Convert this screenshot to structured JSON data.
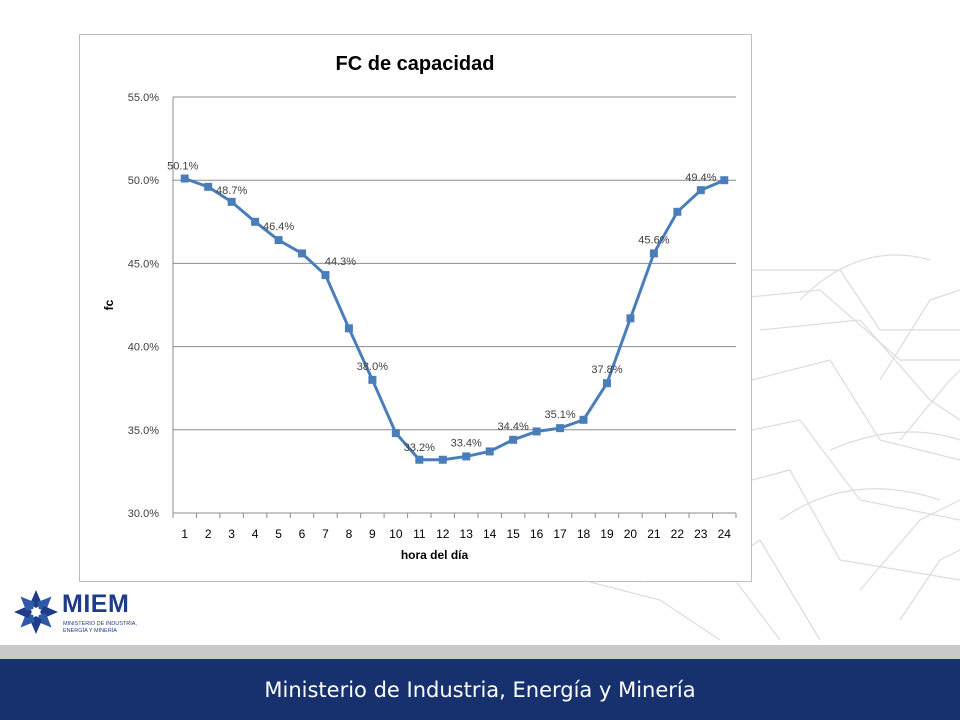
{
  "brand": {
    "logo_name": "MIEM",
    "logo_subtitle_line1": "MINISTERIO DE INDUSTRIA,",
    "logo_subtitle_line2": "ENERGÍA Y MINERÍA",
    "footer_text": "Ministerio de Industria, Energía y Minería",
    "colors": {
      "footer": "#17306e",
      "series": "#4a7ebb",
      "logo": "#1f3c88"
    }
  },
  "chart_data": {
    "type": "line",
    "title": "FC de capacidad",
    "xlabel": "hora del día",
    "ylabel": "fc",
    "categories": [
      "1",
      "2",
      "3",
      "4",
      "5",
      "6",
      "7",
      "8",
      "9",
      "10",
      "11",
      "12",
      "13",
      "14",
      "15",
      "16",
      "17",
      "18",
      "19",
      "20",
      "21",
      "22",
      "23",
      "24"
    ],
    "series": [
      {
        "values": [
          50.1,
          49.6,
          48.7,
          47.5,
          46.4,
          45.6,
          44.3,
          41.1,
          38.0,
          34.8,
          33.2,
          33.2,
          33.4,
          33.7,
          34.4,
          34.9,
          35.1,
          35.6,
          37.8,
          41.7,
          45.6,
          48.1,
          49.4,
          50.0
        ]
      }
    ],
    "data_labels": [
      {
        "index": 0,
        "text": "50.1%"
      },
      {
        "index": 2,
        "text": "48.7%"
      },
      {
        "index": 4,
        "text": "46.4%"
      },
      {
        "index": 6,
        "text": "44.3%"
      },
      {
        "index": 8,
        "text": "38.0%"
      },
      {
        "index": 10,
        "text": "33.2%"
      },
      {
        "index": 12,
        "text": "33.4%"
      },
      {
        "index": 14,
        "text": "34.4%"
      },
      {
        "index": 16,
        "text": "35.1%"
      },
      {
        "index": 18,
        "text": "37.8%"
      },
      {
        "index": 20,
        "text": "45.6%"
      },
      {
        "index": 22,
        "text": "49.4%"
      }
    ],
    "yticks": [
      "30.0%",
      "35.0%",
      "40.0%",
      "45.0%",
      "50.0%",
      "55.0%"
    ],
    "ylim": [
      30,
      55
    ],
    "grid": true,
    "legend": "none"
  }
}
